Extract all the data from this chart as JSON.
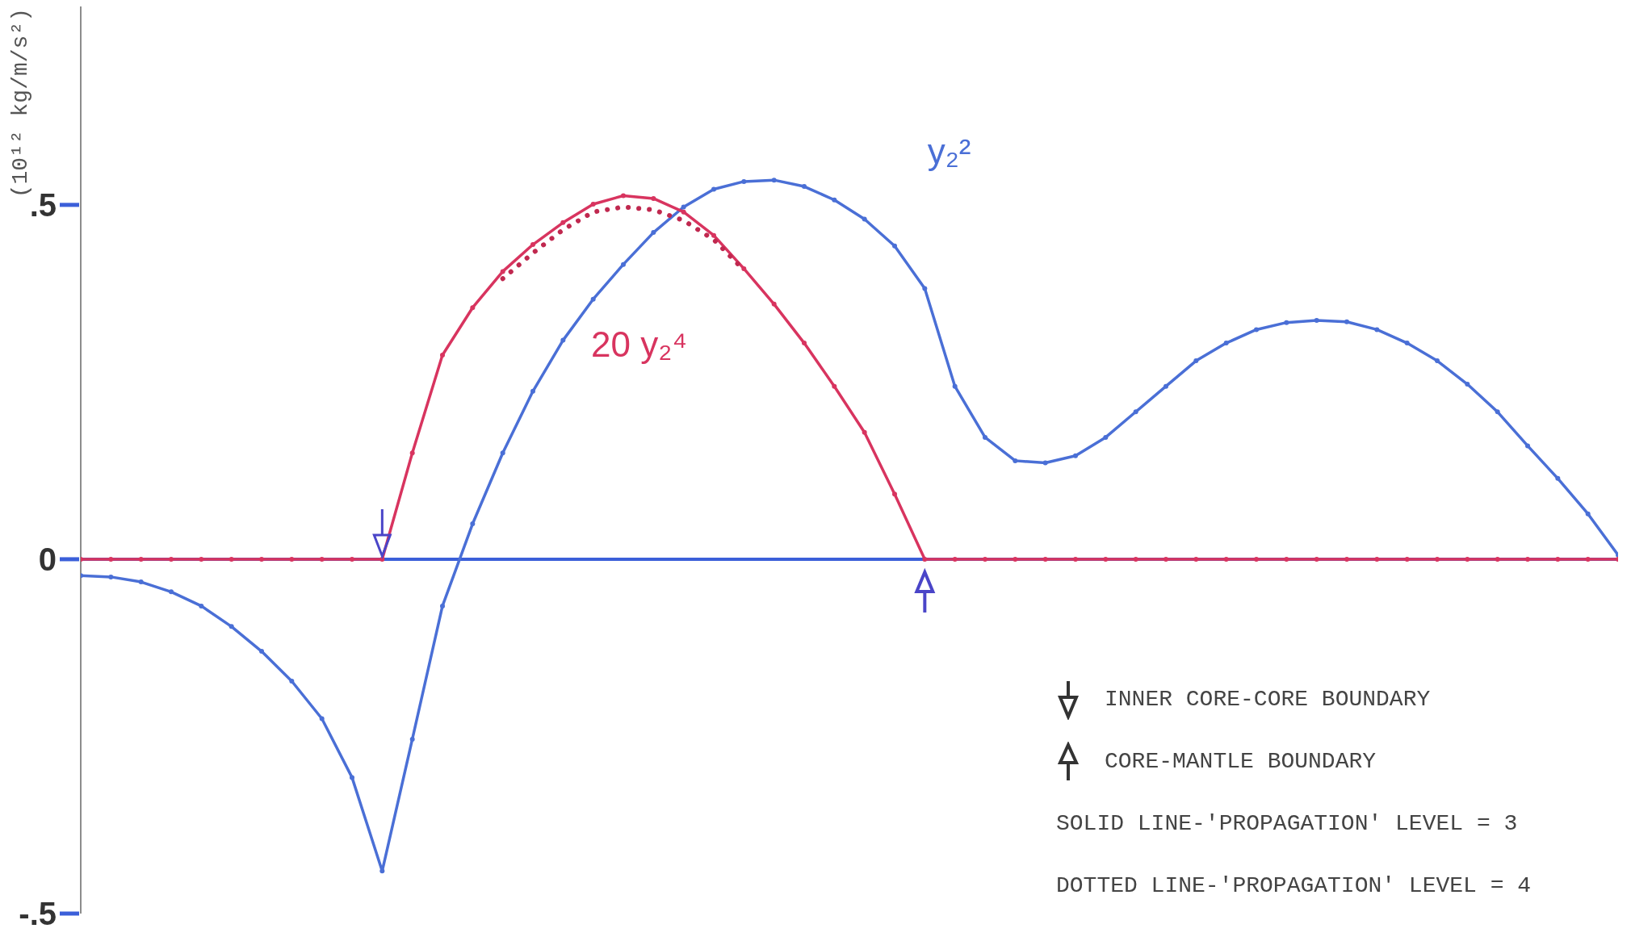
{
  "chart_data": {
    "type": "line",
    "ylabel": "(10¹² kg/m/s²)",
    "categories": [
      null,
      null,
      null,
      null,
      null,
      null,
      null,
      null,
      null,
      null,
      null,
      null,
      null,
      null,
      null,
      null,
      null,
      null,
      null,
      null,
      null,
      null,
      null,
      null,
      null,
      null,
      null,
      null,
      null,
      null,
      null,
      null,
      null,
      null,
      null,
      null,
      null,
      null,
      null,
      null,
      null,
      null,
      null,
      null,
      null,
      null,
      null,
      null,
      null,
      null,
      null,
      null
    ],
    "series": [
      {
        "name": "y₂²",
        "color": "#4a6fd6",
        "line_style": "solid",
        "marker": "circle",
        "values": [
          -0.023,
          -0.025,
          -0.032,
          -0.046,
          -0.066,
          -0.095,
          -0.13,
          -0.172,
          -0.225,
          -0.308,
          -0.44,
          -0.254,
          -0.066,
          0.05,
          0.15,
          0.237,
          0.309,
          0.367,
          0.416,
          0.461,
          0.497,
          0.522,
          0.533,
          0.535,
          0.526,
          0.507,
          0.48,
          0.442,
          0.382,
          0.244,
          0.172,
          0.139,
          0.136,
          0.146,
          0.172,
          0.208,
          0.244,
          0.28,
          0.305,
          0.324,
          0.334,
          0.337,
          0.335,
          0.324,
          0.305,
          0.28,
          0.247,
          0.208,
          0.16,
          0.114,
          0.064,
          0.006
        ]
      },
      {
        "name": "20 y₂⁴",
        "color": "#d8345f",
        "line_style": "solid",
        "marker": "circle",
        "values": [
          0,
          0,
          0,
          0,
          0,
          0,
          0,
          0,
          0,
          0,
          0,
          0.15,
          0.288,
          0.355,
          0.406,
          0.444,
          0.475,
          0.501,
          0.513,
          0.509,
          0.49,
          0.457,
          0.41,
          0.36,
          0.305,
          0.244,
          0.179,
          0.092,
          0,
          0,
          0,
          0,
          0,
          0,
          0,
          0,
          0,
          0,
          0,
          0,
          0,
          0,
          0,
          0,
          0,
          0,
          0,
          0,
          0,
          0,
          0,
          0
        ]
      },
      {
        "color": "#c0284f",
        "line_style": "dotted",
        "marker": "none",
        "values": [
          null,
          null,
          null,
          null,
          null,
          null,
          null,
          null,
          null,
          null,
          null,
          null,
          null,
          null,
          0.396,
          0.432,
          0.465,
          0.49,
          0.497,
          0.493,
          0.478,
          0.451,
          0.408,
          null,
          null,
          null,
          null,
          null,
          null,
          null,
          null,
          null,
          null,
          null,
          null,
          null,
          null,
          null,
          null,
          null,
          null,
          null,
          null,
          null,
          null,
          null,
          null,
          null,
          null,
          null,
          null,
          null
        ]
      }
    ],
    "ylim": [
      -0.5,
      0.78
    ],
    "yticks": [
      {
        "value": -0.5,
        "label": "-.5"
      },
      {
        "value": 0,
        "label": "0"
      },
      {
        "value": 0.5,
        "label": ".5"
      }
    ],
    "tick_labels": "y",
    "grid": false,
    "legend": false,
    "ref_lines": [
      {
        "axis": "y",
        "value": 0,
        "color": "#3b5fd9"
      }
    ],
    "annotations": [
      "INNER CORE-CORE BOUNDARY",
      "CORE-MANTLE BOUNDARY",
      "SOLID LINE-'PROPAGATION' LEVEL = 3",
      "DOTTED LINE-'PROPAGATION' LEVEL = 4"
    ]
  }
}
